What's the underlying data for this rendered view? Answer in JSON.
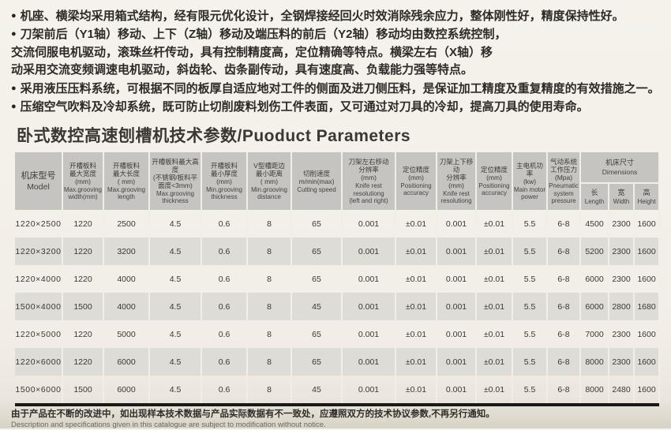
{
  "colors": {
    "page_bg": "#f2eee7",
    "header_bg": "#c6c4c0",
    "stripe_bg": "#dedcd7",
    "rule": "#1b1916",
    "text": "#34322e"
  },
  "intro": {
    "bullet": "●",
    "lines": [
      {
        "bullet": true,
        "text": "机座、横梁均采用箱式结构，经有限元优化设计，全钢焊接经回火时效消除残余应力，整体刚性好，精度保持性好。"
      },
      {
        "bullet": true,
        "text": "刀架前后（Y1轴）移动、上下（Z轴）移动及端压料的前后（Y2轴）移动均由数控系统控制，"
      },
      {
        "bullet": false,
        "text": "交流伺服电机驱动，滚珠丝杆传动，具有控制精度高，定位精确等特点。横梁左右（X轴）移"
      },
      {
        "bullet": false,
        "text": "动采用交流变频调速电机驱动，斜齿轮、齿条副传动，具有速度高、负载能力强等特点。"
      },
      {
        "bullet": true,
        "text": "采用液压压料系统，可根据不同的板厚自适应地对工件的侧面及进刀侧压料，是保证加工精度及重复精度的有效措施之一。"
      },
      {
        "bullet": true,
        "text": "压缩空气吹料及冷却系统，既可防止切削废料划伤工件表面，又可通过对刀具的冷却，提高刀具的使用寿命。"
      }
    ]
  },
  "title": "卧式数控高速刨槽机技术参数/Puoduct Parameters",
  "table": {
    "columns": [
      {
        "zh": "机床型号",
        "en": "Model"
      },
      {
        "zh": "开槽板料\n最大宽度\n(mm)",
        "en": "Max.grooving\nwidth(mm)"
      },
      {
        "zh": "开槽板料\n最大长度\n( mm)",
        "en": "Max.grooving\nlength"
      },
      {
        "zh": "开槽板料最大高度\n(不锈钢/板料平\n面度<3mm)",
        "en": "Max.grooving\nthickness"
      },
      {
        "zh": "开槽板料\n最小厚度\n(mm)",
        "en": "Min.grooving\nthickness"
      },
      {
        "zh": "V型槽距边\n最小距离\n( mm)",
        "en": "Min.grooving\ndistance"
      },
      {
        "zh": "切削速度\nm/min(max)",
        "en": "Cutting speed"
      },
      {
        "zh": "刀架左右移动\n分辨率\n(mm)",
        "en": "Knife rest\nresolutiong\n(left and right)"
      },
      {
        "zh": "定位精度\n(mm)",
        "en": "Positioning\naccuracy"
      },
      {
        "zh": "刀架上下移动\n分辨率\n(mm)",
        "en": "Knife rest\nresolutiong"
      },
      {
        "zh": "定位精度\n(mm)",
        "en": "Positioning\naccuracy"
      },
      {
        "zh": "主电机功率\n(kw)",
        "en": "Main motor\npower"
      },
      {
        "zh": "气动系统\n工作压力\n(Mpa)",
        "en": "Pneumatic\nsystem\npressure"
      }
    ],
    "dimensions": {
      "zh": "机床尺寸",
      "en": "Dimensions",
      "sub": [
        {
          "zh": "长",
          "en": "Length"
        },
        {
          "zh": "宽",
          "en": "Width"
        },
        {
          "zh": "高",
          "en": "Height"
        }
      ]
    },
    "rows": [
      [
        "1220×2500",
        "1220",
        "2500",
        "4.5",
        "0.6",
        "8",
        "65",
        "0.001",
        "±0.01",
        "0.001",
        "±0.01",
        "5.5",
        "6-8",
        "4500",
        "2300",
        "1600"
      ],
      [
        "1220×3200",
        "1220",
        "3200",
        "4.5",
        "0.6",
        "8",
        "65",
        "0.001",
        "±0.01",
        "0.001",
        "±0.01",
        "5.5",
        "6-8",
        "5200",
        "2300",
        "1600"
      ],
      [
        "1220×4000",
        "1220",
        "4000",
        "4.5",
        "0.6",
        "8",
        "65",
        "0.001",
        "±0.01",
        "0.001",
        "±0.01",
        "5.5",
        "6-8",
        "6000",
        "2300",
        "1600"
      ],
      [
        "1500×4000",
        "1500",
        "4000",
        "4.5",
        "0.6",
        "8",
        "45",
        "0.001",
        "±0.01",
        "0.001",
        "±0.01",
        "5.5",
        "6-8",
        "6000",
        "2800",
        "1680"
      ],
      [
        "1220×5000",
        "1220",
        "5000",
        "4.5",
        "0.6",
        "8",
        "65",
        "0.001",
        "±0.01",
        "0.001",
        "±0.01",
        "5.5",
        "6-8",
        "7000",
        "2300",
        "1600"
      ],
      [
        "1220×6000",
        "1220",
        "6000",
        "4.5",
        "0.6",
        "8",
        "65",
        "0.001",
        "±0.01",
        "0.001",
        "±0.01",
        "5.5",
        "6-8",
        "8000",
        "2300",
        "1600"
      ],
      [
        "1500×6000",
        "1500",
        "6000",
        "4.5",
        "0.6",
        "8",
        "45",
        "0.001",
        "±0.01",
        "0.001",
        "±0.01",
        "5.5",
        "6-8",
        "8000",
        "2480",
        "1600"
      ]
    ],
    "striped_rows": [
      1,
      3,
      5
    ]
  },
  "footer": {
    "zh": "由于产品在不断的改进中，如出现样本技术数据与产品实际数据有不一致处，应遵照双方的技术协议参数,不再另行通知。",
    "en": "Description and specifications given in this catalogue are subject to modification without notice."
  }
}
